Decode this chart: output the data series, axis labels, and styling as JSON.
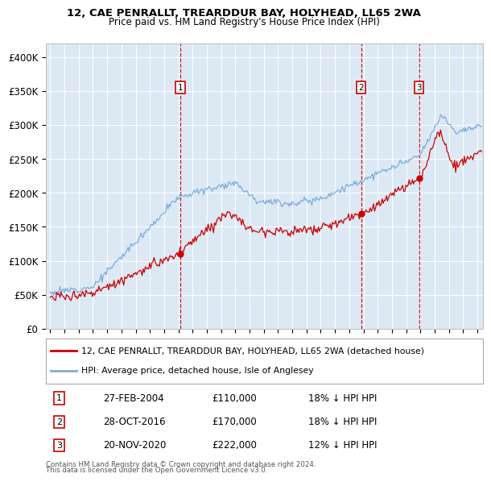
{
  "title1": "12, CAE PENRALLT, TREARDDUR BAY, HOLYHEAD, LL65 2WA",
  "title2": "Price paid vs. HM Land Registry's House Price Index (HPI)",
  "background_color": "#dce9f5",
  "line1_color": "#cc0000",
  "line2_color": "#7aaddb",
  "sale_color": "#cc0000",
  "vline_color": "#cc0000",
  "marker_box_color": "#cc0000",
  "sales": [
    {
      "date_num": 2004.15,
      "price": 110000,
      "label": "1",
      "date_str": "27-FEB-2004",
      "pct": "18% ↓ HPI"
    },
    {
      "date_num": 2016.83,
      "price": 170000,
      "label": "2",
      "date_str": "28-OCT-2016",
      "pct": "18% ↓ HPI"
    },
    {
      "date_num": 2020.9,
      "price": 222000,
      "label": "3",
      "date_str": "20-NOV-2020",
      "pct": "12% ↓ HPI"
    }
  ],
  "legend1_label": "12, CAE PENRALLT, TREARDDUR BAY, HOLYHEAD, LL65 2WA (detached house)",
  "legend2_label": "HPI: Average price, detached house, Isle of Anglesey",
  "footer1": "Contains HM Land Registry data © Crown copyright and database right 2024.",
  "footer2": "This data is licensed under the Open Government Licence v3.0.",
  "ylim": [
    0,
    420000
  ],
  "xlim_start": 1994.7,
  "xlim_end": 2025.4
}
